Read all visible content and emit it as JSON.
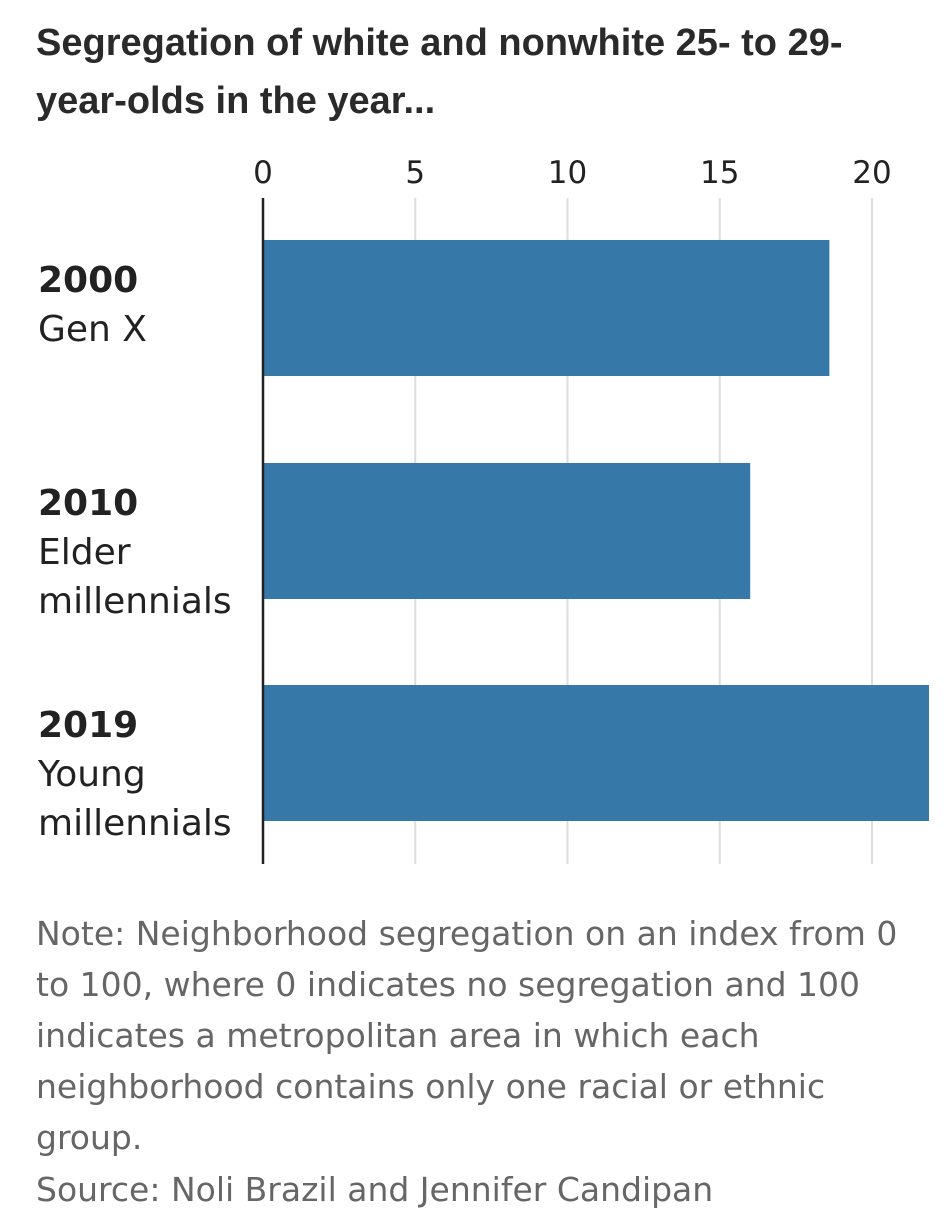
{
  "chart_data": {
    "type": "bar",
    "orientation": "horizontal",
    "title": "Segregation of white and nonwhite 25- to 29-year-olds in the year...",
    "categories": [
      {
        "year": "2000",
        "label_lines": [
          "Gen X"
        ]
      },
      {
        "year": "2010",
        "label_lines": [
          "Elder",
          "millennials"
        ]
      },
      {
        "year": "2019",
        "label_lines": [
          "Young",
          "millennials"
        ]
      }
    ],
    "values": [
      18.6,
      16.0,
      22.0
    ],
    "xlim": [
      0,
      22
    ],
    "xticks": [
      "0",
      "5",
      "10",
      "15",
      "20"
    ],
    "xtick_values": [
      0,
      5,
      10,
      15,
      20
    ],
    "grid": true,
    "bar_color": "#3679a8",
    "grid_color": "#dddddd",
    "axis_color": "#222222"
  },
  "note": "Note: Neighborhood segregation on an index from 0 to 100, where 0 indicates no segregation and 100 indicates a metropolitan area in which each neighborhood contains only one racial or ethnic group.",
  "source": "Source: Noli Brazil and Jennifer Candipan"
}
